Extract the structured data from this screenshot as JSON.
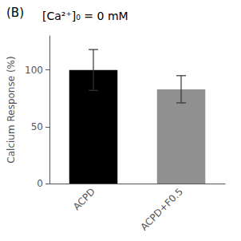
{
  "chart_data": {
    "type": "bar",
    "title": "[Ca²⁺]₀ = 0 mM",
    "annotations": [
      "(B)"
    ],
    "categories": [
      "ACPD",
      "ACPD+F0.5"
    ],
    "values": [
      100,
      83
    ],
    "errors": [
      18,
      12
    ],
    "colors": [
      "#000000",
      "#909090"
    ],
    "ylabel": "Calcium Response (%)",
    "ylim": [
      0,
      130
    ],
    "yticks": [
      0,
      50,
      100
    ],
    "grid": false
  }
}
